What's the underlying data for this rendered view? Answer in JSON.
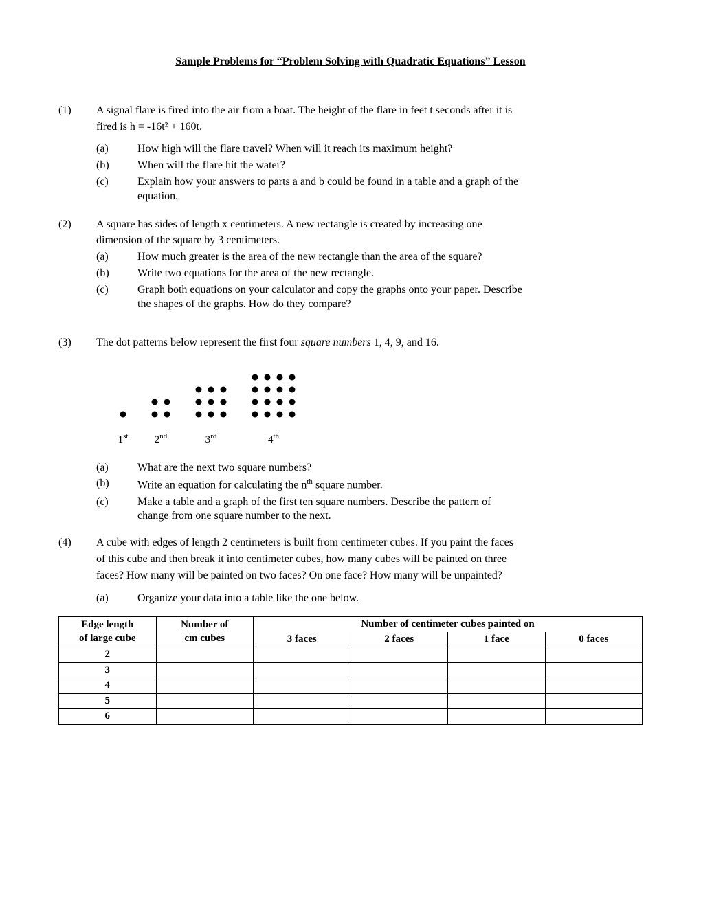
{
  "title": "Sample Problems for “Problem Solving with Quadratic Equations” Lesson",
  "problems": {
    "p1": {
      "num": "(1)",
      "intro_line1": "A signal flare is fired into the air from a boat.  The height of the flare in feet t seconds after it is",
      "intro_line2": "fired is h = -16t² + 160t.",
      "subs": {
        "a": {
          "lbl": "(a)",
          "text": "How high will the flare travel?  When will it reach its maximum height?"
        },
        "b": {
          "lbl": "(b)",
          "text": "When will the flare hit the water?"
        },
        "c": {
          "lbl": "(c)",
          "text1": "Explain how your answers to parts a and b could be found in a table and a graph of the",
          "text2": "equation."
        }
      }
    },
    "p2": {
      "num": "(2)",
      "intro_line1": "A square has sides of length x centimeters.  A new rectangle is created by increasing one",
      "intro_line2": "dimension of the square by 3 centimeters.",
      "subs": {
        "a": {
          "lbl": "(a)",
          "text": "How much greater is the area of the new rectangle than the area of the square?"
        },
        "b": {
          "lbl": "(b)",
          "text": "Write two equations for the area of the new rectangle."
        },
        "c": {
          "lbl": "(c)",
          "text1": "Graph both equations on your calculator and copy the graphs onto your paper.  Describe",
          "text2": "the shapes of the graphs.  How do they compare?"
        }
      }
    },
    "p3": {
      "num": "(3)",
      "intro_pre": "The dot patterns below represent the first four ",
      "intro_italic": "square numbers",
      "intro_post": " 1, 4, 9, and 16.",
      "labels": {
        "l1": "1",
        "s1": "st",
        "l2": "2",
        "s2": "nd",
        "l3": "3",
        "s3": "rd",
        "l4": "4",
        "s4": "th"
      },
      "subs": {
        "a": {
          "lbl": "(a)",
          "text": "What are the next two square numbers?"
        },
        "b": {
          "lbl": "(b)",
          "text_pre": "Write an equation for calculating the n",
          "sup": "th",
          "text_post": " square number."
        },
        "c": {
          "lbl": "(c)",
          "text1": "Make a table and a graph of the first ten square numbers.  Describe the pattern of",
          "text2": "change from one square number to the next."
        }
      },
      "dot_style": {
        "r": 4.5,
        "gap": 18,
        "color": "#000000"
      }
    },
    "p4": {
      "num": "(4)",
      "intro_line1": "A cube with edges of length 2 centimeters is built from centimeter cubes.  If you paint the faces",
      "intro_line2": "of this cube and then break it into centimeter cubes, how many cubes will be painted on three",
      "intro_line3": "faces?  How many will be painted on two faces?  On one face?  How many will be unpainted?",
      "subs": {
        "a": {
          "lbl": "(a)",
          "text": "Organize your data into a table like the one below."
        }
      }
    },
    "table": {
      "head": {
        "c1a": "Edge length",
        "c1b": "of large cube",
        "c2a": "Number of",
        "c2b": "cm cubes",
        "span": "Number of centimeter cubes painted on",
        "c3": "3 faces",
        "c4": "2 faces",
        "c5": "1 face",
        "c6": "0 faces"
      },
      "rows": [
        "2",
        "3",
        "4",
        "5",
        "6"
      ]
    }
  }
}
